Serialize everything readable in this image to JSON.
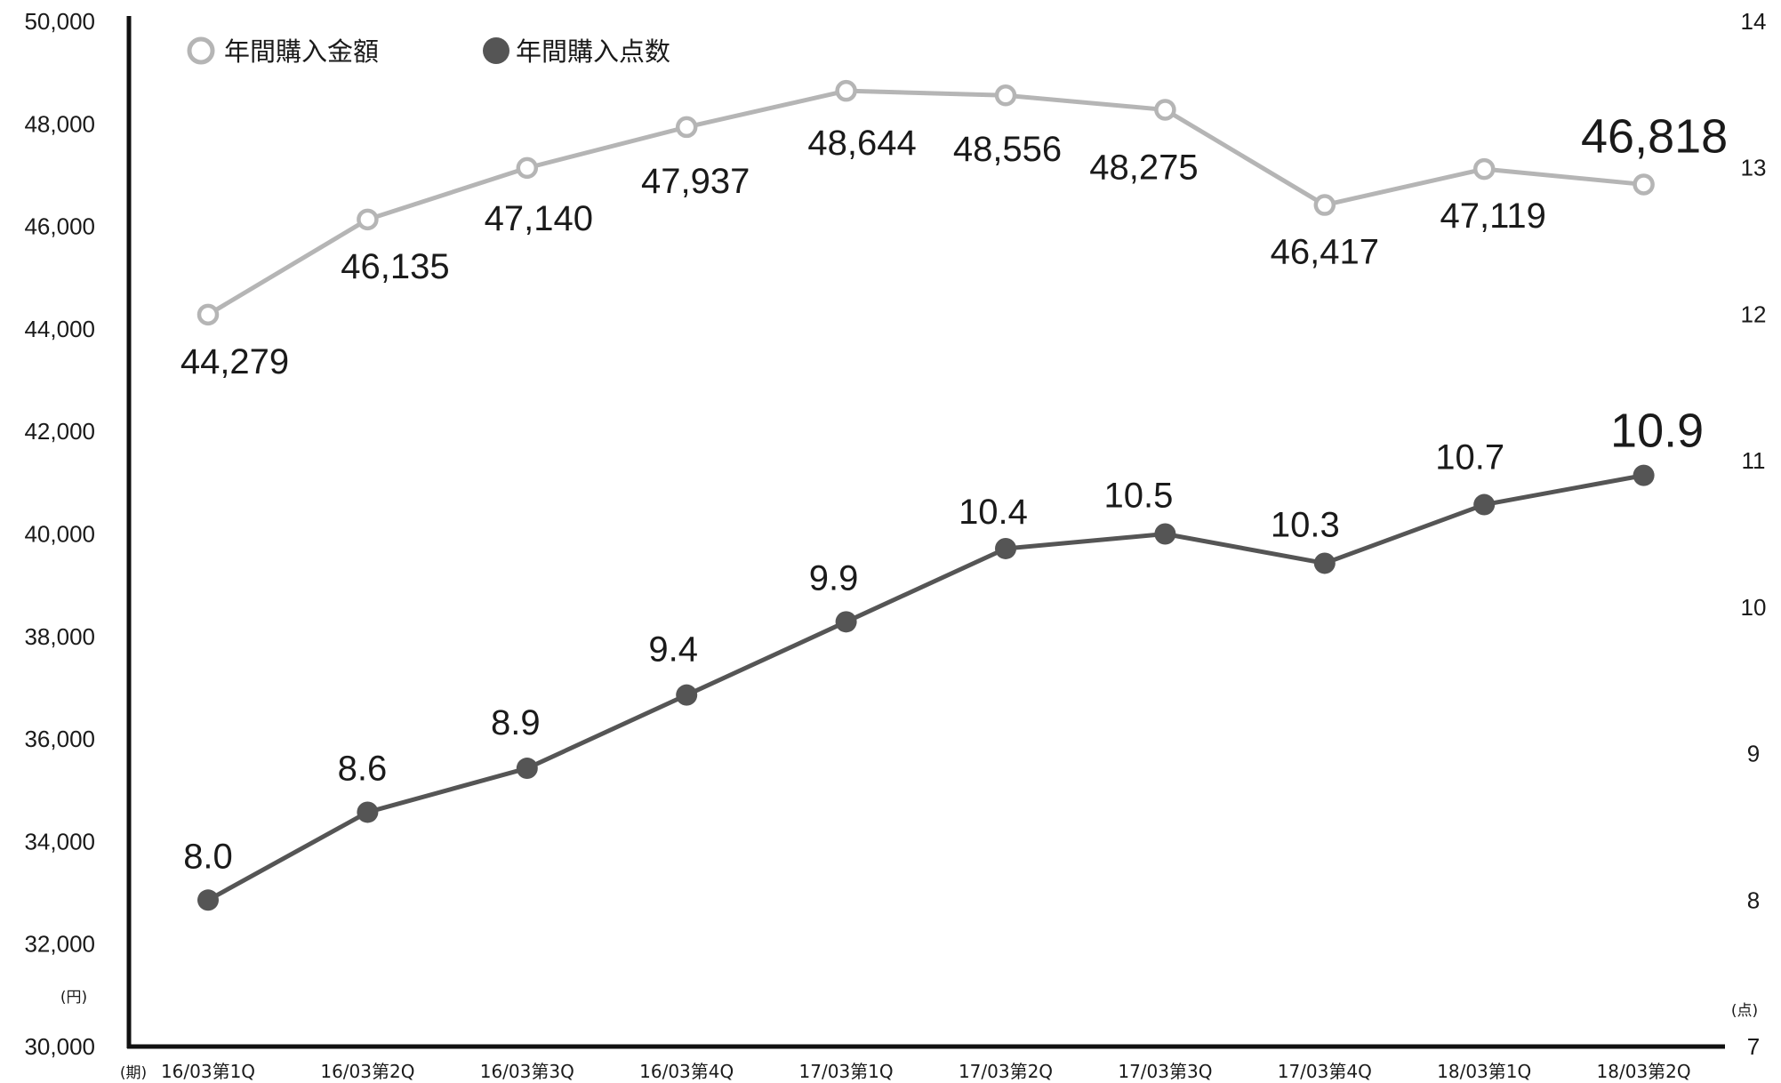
{
  "chart_data": {
    "type": "line",
    "categories": [
      "16/03第1Q",
      "16/03第2Q",
      "16/03第3Q",
      "16/03第4Q",
      "17/03第1Q",
      "17/03第2Q",
      "17/03第3Q",
      "17/03第4Q",
      "18/03第1Q",
      "18/03第2Q"
    ],
    "series": [
      {
        "name": "年間購入金額",
        "axis": "left",
        "values": [
          44279,
          46135,
          47140,
          47937,
          48644,
          48556,
          48275,
          46417,
          47119,
          46818
        ],
        "labels": [
          "44,279",
          "46,135",
          "47,140",
          "47,937",
          "48,644",
          "48,556",
          "48,275",
          "46,417",
          "47,119",
          "46,818"
        ],
        "color": "#b5b5b5",
        "marker": "hollow-circle"
      },
      {
        "name": "年間購入点数",
        "axis": "right",
        "values": [
          8.0,
          8.6,
          8.9,
          9.4,
          9.9,
          10.4,
          10.5,
          10.3,
          10.7,
          10.9
        ],
        "labels": [
          "8.0",
          "8.6",
          "8.9",
          "9.4",
          "9.9",
          "10.4",
          "10.5",
          "10.3",
          "10.7",
          "10.9"
        ],
        "color": "#555555",
        "marker": "filled-circle"
      }
    ],
    "y_left": {
      "unit": "(円)",
      "ylim": [
        30000,
        50000
      ],
      "ticks": [
        "30,000",
        "32,000",
        "34,000",
        "36,000",
        "38,000",
        "40,000",
        "42,000",
        "44,000",
        "46,000",
        "48,000",
        "50,000"
      ]
    },
    "y_right": {
      "unit": "(点)",
      "ylim": [
        7,
        14
      ],
      "ticks": [
        "7",
        "8",
        "9",
        "10",
        "11",
        "12",
        "13",
        "14"
      ]
    },
    "x_unit": "(期)",
    "legend": {
      "position": "top-left",
      "items": [
        "年間購入金額",
        "年間購入点数"
      ]
    },
    "grid": false
  }
}
